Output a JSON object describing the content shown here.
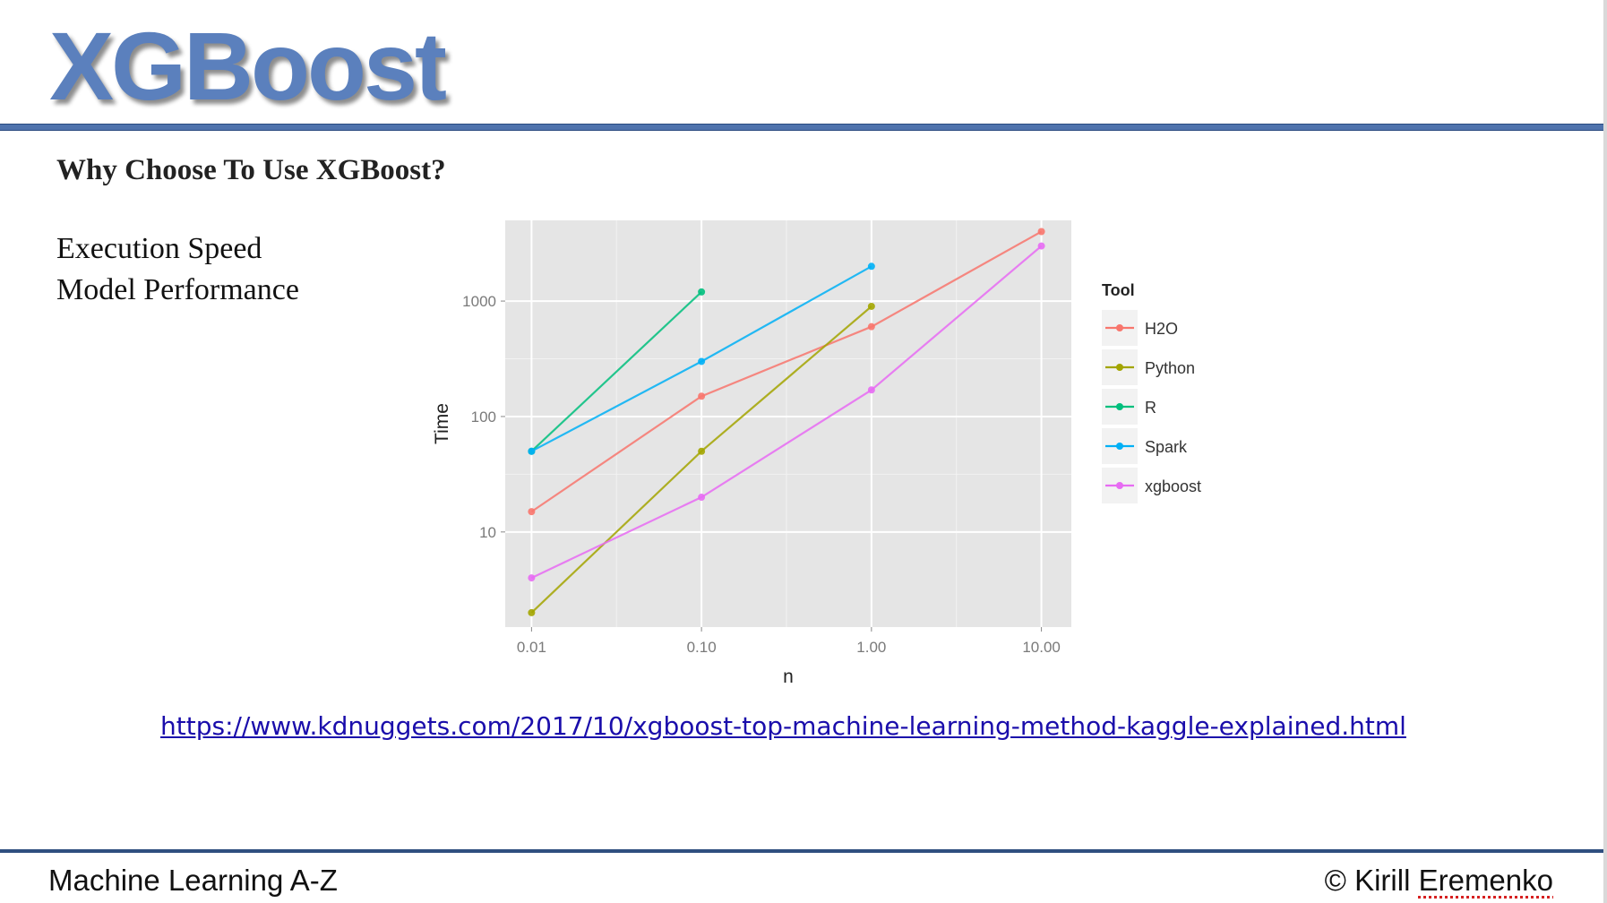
{
  "slide": {
    "title": "XGBoost",
    "heading": "Why Choose To Use XGBoost?",
    "bullets": [
      "Execution Speed",
      "Model Performance"
    ],
    "link": "https://www.kdnuggets.com/2017/10/xgboost-top-machine-learning-method-kaggle-explained.html",
    "footer_left": "Machine Learning A-Z",
    "footer_right_prefix": "© Kirill ",
    "footer_right_name": "Eremenko"
  },
  "colors": {
    "title": "#5b80bd",
    "rule": "#4f73ad",
    "link": "#1a0dab",
    "panel": "#e5e5e5"
  },
  "chart_data": {
    "type": "line",
    "xlabel": "n",
    "ylabel": "Time",
    "x_scale": "log",
    "y_scale": "log",
    "x_ticks": [
      "0.01",
      "0.10",
      "1.00",
      "10.00"
    ],
    "y_ticks": [
      "10",
      "100",
      "1000"
    ],
    "xlim": [
      0.007,
      15
    ],
    "ylim": [
      1.5,
      5000
    ],
    "grid": true,
    "legend_title": "Tool",
    "legend_position": "right",
    "series": [
      {
        "name": "H2O",
        "color": "#f8766d",
        "x": [
          0.01,
          0.1,
          1,
          10
        ],
        "y": [
          15,
          150,
          600,
          4000
        ]
      },
      {
        "name": "Python",
        "color": "#a3a500",
        "x": [
          0.01,
          0.1,
          1
        ],
        "y": [
          2,
          50,
          900
        ]
      },
      {
        "name": "R",
        "color": "#00bf7d",
        "x": [
          0.01,
          0.1
        ],
        "y": [
          50,
          1200
        ]
      },
      {
        "name": "Spark",
        "color": "#00b0f6",
        "x": [
          0.01,
          0.1,
          1
        ],
        "y": [
          50,
          300,
          2000
        ]
      },
      {
        "name": "xgboost",
        "color": "#e76bf3",
        "x": [
          0.01,
          0.1,
          1,
          10
        ],
        "y": [
          4,
          20,
          170,
          3000
        ]
      }
    ]
  }
}
